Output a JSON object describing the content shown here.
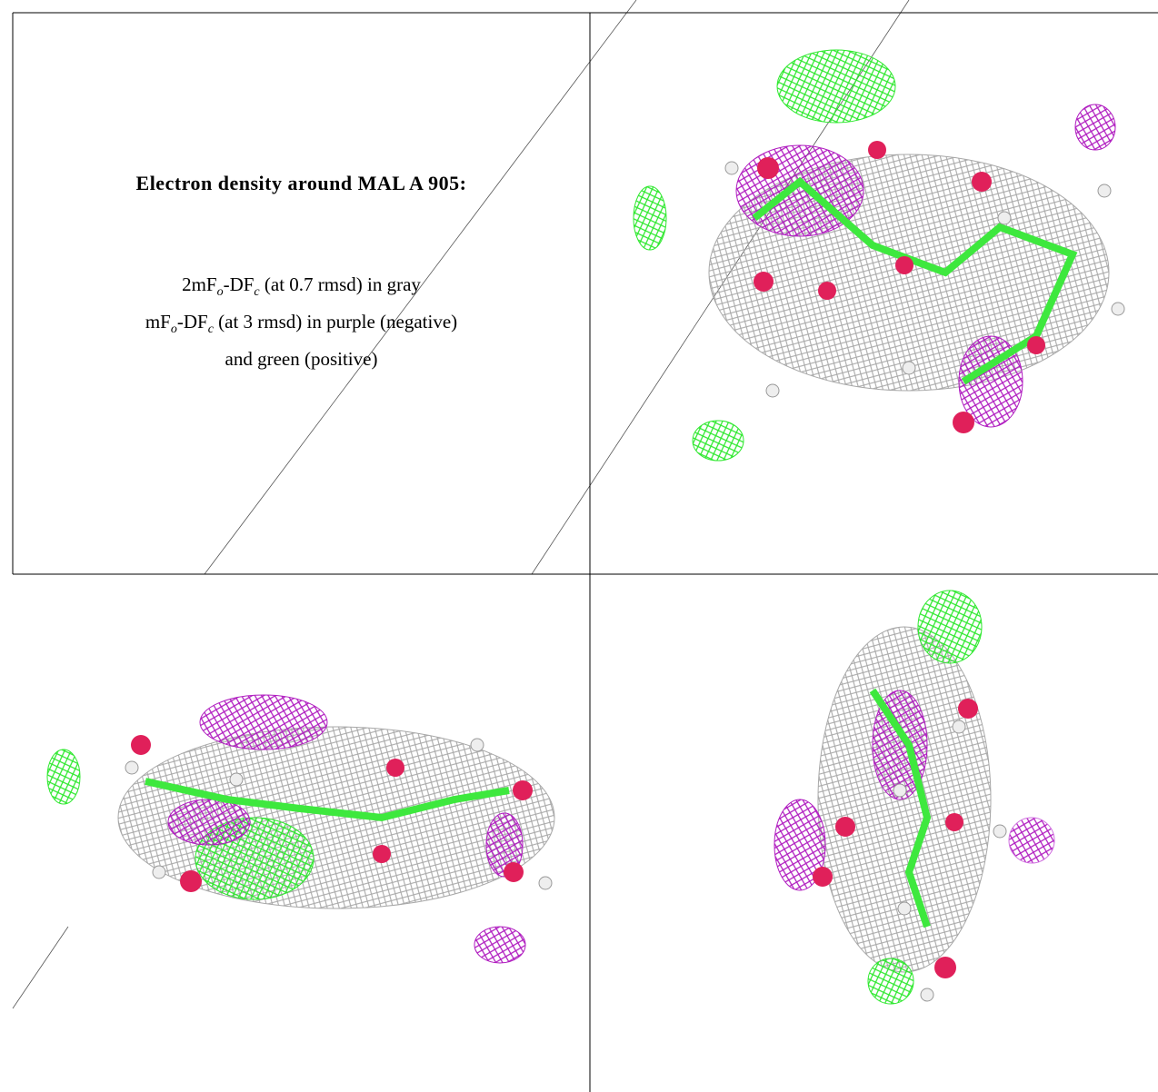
{
  "panel_title": "Electron density around MAL A 905:",
  "legend_lines": [
    [
      "2mF",
      "o",
      "-DF",
      "c",
      " (at 0.7 rmsd) in gray"
    ],
    [
      "mF",
      "o",
      "-DF",
      "c",
      " (at 3 rmsd) in purple (negative)"
    ],
    [
      "and green (positive)"
    ]
  ]
}
